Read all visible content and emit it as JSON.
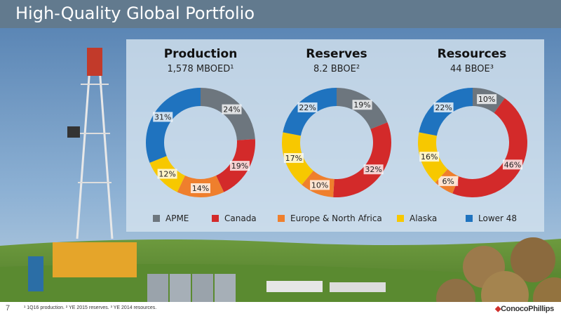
{
  "header": {
    "title": "High-Quality Global Portfolio"
  },
  "colors": {
    "APME": "#6d767e",
    "Canada": "#d32a2a",
    "Europe & North Africa": "#ef7f2d",
    "Alaska": "#f7c800",
    "Lower 48": "#1f73bf"
  },
  "chart_data": [
    {
      "type": "pie",
      "title": "Production",
      "subtitle": "1,578 MBOED¹",
      "categories": [
        "APME",
        "Canada",
        "Europe & North Africa",
        "Alaska",
        "Lower 48"
      ],
      "values": [
        24,
        19,
        14,
        12,
        31
      ],
      "labels": [
        "24%",
        "19%",
        "14%",
        "12%",
        "31%"
      ]
    },
    {
      "type": "pie",
      "title": "Reserves",
      "subtitle": "8.2 BBOE²",
      "categories": [
        "APME",
        "Canada",
        "Europe & North Africa",
        "Alaska",
        "Lower 48"
      ],
      "values": [
        19,
        32,
        10,
        17,
        22
      ],
      "labels": [
        "19%",
        "32%",
        "10%",
        "17%",
        "22%"
      ]
    },
    {
      "type": "pie",
      "title": "Resources",
      "subtitle": "44 BBOE³",
      "categories": [
        "APME",
        "Canada",
        "Europe & North Africa",
        "Alaska",
        "Lower 48"
      ],
      "values": [
        10,
        46,
        6,
        16,
        22
      ],
      "labels": [
        "10%",
        "46%",
        "6%",
        "16%",
        "22%"
      ]
    }
  ],
  "legend": {
    "items": [
      "APME",
      "Canada",
      "Europe & North Africa",
      "Alaska",
      "Lower 48"
    ]
  },
  "footer": {
    "page_number": "7",
    "notes": "¹ 1Q16 production.    ² YE 2015 reserves.    ³ YE 2014 resources.",
    "logo": "ConocoPhillips"
  }
}
